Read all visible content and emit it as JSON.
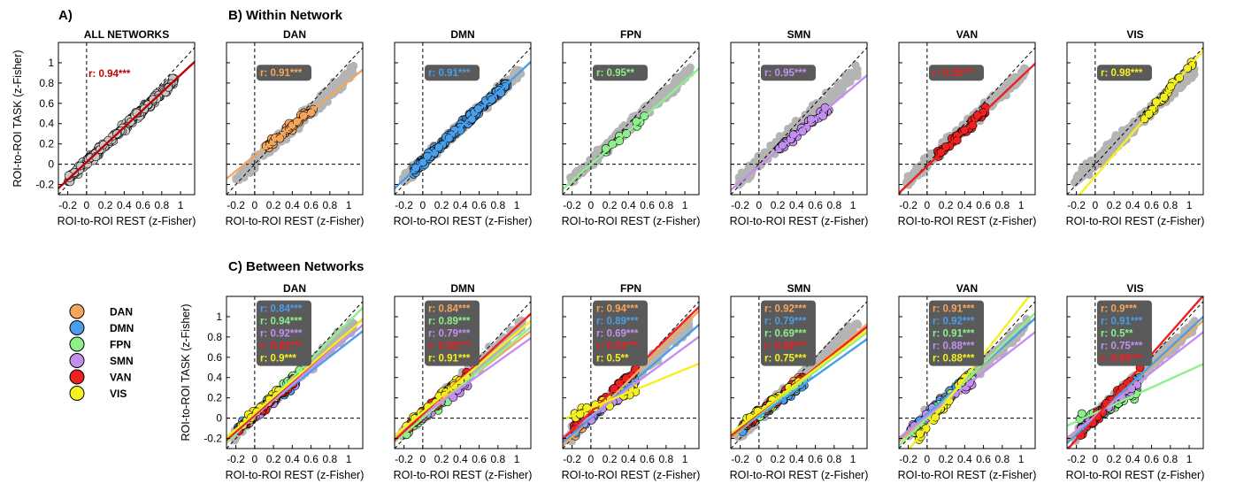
{
  "panel_labels": {
    "a": "A)",
    "b": "B) Within Network",
    "c": "C) Between Networks"
  },
  "axis_labels": {
    "x": "ROI-to-ROI REST (z-Fisher)",
    "y": "ROI-to-ROI TASK (z-Fisher)"
  },
  "colors": {
    "DAN": "#f5a65b",
    "DMN": "#4a9eea",
    "FPN": "#8ef08a",
    "SMN": "#c490f0",
    "VAN": "#ee2020",
    "VIS": "#f5f020",
    "ALL_fill": "#c8c8c8",
    "ALL_line": "#c00000",
    "background_points": "#b4b4b4",
    "r_box": "#5a5a5a"
  },
  "legend": [
    "DAN",
    "DMN",
    "FPN",
    "SMN",
    "VAN",
    "VIS"
  ],
  "chart_data": [
    {
      "type": "scatter",
      "panel": "A",
      "title": "ALL NETWORKS",
      "xlabel": "ROI-to-ROI REST (z-Fisher)",
      "ylabel": "ROI-to-ROI TASK (z-Fisher)",
      "xlim": [
        -0.3,
        1.15
      ],
      "ylim": [
        -0.3,
        1.2
      ],
      "xticks": [
        "-0.2",
        "0",
        "0.2",
        "0.4",
        "0.6",
        "0.8",
        "1"
      ],
      "yticks": [
        "-0.2",
        "0",
        "0.2",
        "0.4",
        "0.6",
        "0.8",
        "1"
      ],
      "series": [
        {
          "label": "ALL",
          "color": "#c8c8c8",
          "r": "r: 0.94***",
          "x_range": [
            -0.2,
            0.95
          ],
          "fit": [
            0.86,
            0.02
          ]
        }
      ]
    },
    {
      "type": "scatter",
      "panel": "B",
      "title": "DAN",
      "xlim": [
        -0.3,
        1.15
      ],
      "ylim": [
        -0.3,
        1.2
      ],
      "xticks": [
        "-0.2",
        "0",
        "0.2",
        "0.4",
        "0.6",
        "0.8",
        "1"
      ],
      "series": [
        {
          "label": "DAN",
          "r": "r: 0.91***",
          "x_range": [
            0.12,
            0.65
          ],
          "fit": [
            0.74,
            0.08
          ]
        }
      ]
    },
    {
      "type": "scatter",
      "panel": "B",
      "title": "DMN",
      "xlim": [
        -0.3,
        1.15
      ],
      "ylim": [
        -0.3,
        1.2
      ],
      "xticks": [
        "-0.2",
        "0",
        "0.2",
        "0.4",
        "0.6",
        "0.8",
        "1"
      ],
      "series": [
        {
          "label": "DMN",
          "r": "r: 0.91***",
          "x_range": [
            -0.1,
            0.9
          ],
          "fit": [
            0.86,
            0.02
          ]
        }
      ]
    },
    {
      "type": "scatter",
      "panel": "B",
      "title": "FPN",
      "xlim": [
        -0.3,
        1.15
      ],
      "ylim": [
        -0.3,
        1.2
      ],
      "xticks": [
        "-0.2",
        "0",
        "0.2",
        "0.4",
        "0.6",
        "0.8",
        "1"
      ],
      "series": [
        {
          "label": "FPN",
          "r": "r: 0.95**",
          "x_range": [
            0.15,
            0.6
          ],
          "fit": [
            0.82,
            0.0
          ]
        }
      ]
    },
    {
      "type": "scatter",
      "panel": "B",
      "title": "SMN",
      "xlim": [
        -0.3,
        1.15
      ],
      "ylim": [
        -0.3,
        1.2
      ],
      "xticks": [
        "-0.2",
        "0",
        "0.2",
        "0.4",
        "0.6",
        "0.8",
        "1"
      ],
      "series": [
        {
          "label": "SMN",
          "r": "r: 0.95***",
          "x_range": [
            0.2,
            0.75
          ],
          "fit": [
            0.78,
            -0.02
          ]
        }
      ]
    },
    {
      "type": "scatter",
      "panel": "B",
      "title": "VAN",
      "xlim": [
        -0.3,
        1.15
      ],
      "ylim": [
        -0.3,
        1.2
      ],
      "xticks": [
        "-0.2",
        "0",
        "0.2",
        "0.4",
        "0.6",
        "0.8",
        "1"
      ],
      "series": [
        {
          "label": "VAN",
          "r": "r: 0.95***",
          "x_range": [
            0.1,
            0.62
          ],
          "fit": [
            0.88,
            -0.02
          ]
        }
      ]
    },
    {
      "type": "scatter",
      "panel": "B",
      "title": "VIS",
      "xlim": [
        -0.3,
        1.15
      ],
      "ylim": [
        -0.3,
        1.2
      ],
      "xticks": [
        "-0.2",
        "0",
        "0.2",
        "0.4",
        "0.6",
        "0.8",
        "1"
      ],
      "series": [
        {
          "label": "VIS",
          "r": "r: 0.98***",
          "x_range": [
            0.5,
            1.1
          ],
          "fit": [
            1.08,
            -0.12
          ]
        }
      ]
    },
    {
      "type": "scatter",
      "panel": "C",
      "title": "DAN",
      "xlim": [
        -0.3,
        1.15
      ],
      "ylim": [
        -0.3,
        1.2
      ],
      "xticks": [
        "-0.2",
        "0",
        "0.2",
        "0.4",
        "0.6",
        "0.8",
        "1"
      ],
      "yticks": [
        "-0.2",
        "0",
        "0.2",
        "0.4",
        "0.6",
        "0.8",
        "1"
      ],
      "series": [
        {
          "label": "DMN",
          "r": "r: 0.84***",
          "fit": [
            0.72,
            0.03
          ]
        },
        {
          "label": "FPN",
          "r": "r: 0.94***",
          "fit": [
            0.92,
            0.03
          ]
        },
        {
          "label": "SMN",
          "r": "r: 0.92***",
          "fit": [
            0.78,
            0.02
          ]
        },
        {
          "label": "VAN",
          "r": "r: 0.91***",
          "fit": [
            0.82,
            0.03
          ]
        },
        {
          "label": "VIS",
          "r": "r: 0.9***",
          "fit": [
            0.8,
            0.05
          ]
        }
      ]
    },
    {
      "type": "scatter",
      "panel": "C",
      "title": "DMN",
      "xlim": [
        -0.3,
        1.15
      ],
      "ylim": [
        -0.3,
        1.2
      ],
      "xticks": [
        "-0.2",
        "0",
        "0.2",
        "0.4",
        "0.6",
        "0.8",
        "1"
      ],
      "series": [
        {
          "label": "DAN",
          "r": "r: 0.84***",
          "fit": [
            0.72,
            0.03
          ]
        },
        {
          "label": "FPN",
          "r": "r: 0.89***",
          "fit": [
            0.78,
            0.0
          ]
        },
        {
          "label": "SMN",
          "r": "r: 0.79***",
          "fit": [
            0.66,
            0.03
          ]
        },
        {
          "label": "VAN",
          "r": "r: 0.92***",
          "fit": [
            0.86,
            0.04
          ]
        },
        {
          "label": "VIS",
          "r": "r: 0.91***",
          "fit": [
            0.78,
            0.06
          ]
        }
      ]
    },
    {
      "type": "scatter",
      "panel": "C",
      "title": "FPN",
      "xlim": [
        -0.3,
        1.15
      ],
      "ylim": [
        -0.3,
        1.2
      ],
      "xticks": [
        "-0.2",
        "0",
        "0.2",
        "0.4",
        "0.6",
        "0.8",
        "1"
      ],
      "series": [
        {
          "label": "DAN",
          "r": "r: 0.94***",
          "fit": [
            0.92,
            0.0
          ]
        },
        {
          "label": "DMN",
          "r": "r: 0.89***",
          "fit": [
            0.8,
            0.0
          ]
        },
        {
          "label": "SMN",
          "r": "r: 0.69***",
          "fit": [
            0.68,
            0.02
          ]
        },
        {
          "label": "VAN",
          "r": "r: 0.91***",
          "fit": [
            0.9,
            0.06
          ]
        },
        {
          "label": "VIS",
          "r": "r: 0.5**",
          "fit": [
            0.38,
            0.1
          ]
        }
      ]
    },
    {
      "type": "scatter",
      "panel": "C",
      "title": "SMN",
      "xlim": [
        -0.3,
        1.15
      ],
      "ylim": [
        -0.3,
        1.2
      ],
      "xticks": [
        "-0.2",
        "0",
        "0.2",
        "0.4",
        "0.6",
        "0.8",
        "1"
      ],
      "series": [
        {
          "label": "DAN",
          "r": "r: 0.92***",
          "fit": [
            0.78,
            0.03
          ]
        },
        {
          "label": "DMN",
          "r": "r: 0.79***",
          "fit": [
            0.66,
            0.02
          ]
        },
        {
          "label": "FPN",
          "r": "r: 0.69***",
          "fit": [
            0.7,
            0.04
          ]
        },
        {
          "label": "VAN",
          "r": "r: 0.88***",
          "fit": [
            0.74,
            0.05
          ]
        },
        {
          "label": "VIS",
          "r": "r: 0.75***",
          "fit": [
            0.7,
            0.06
          ]
        }
      ]
    },
    {
      "type": "scatter",
      "panel": "C",
      "title": "VAN",
      "xlim": [
        -0.3,
        1.15
      ],
      "ylim": [
        -0.3,
        1.2
      ],
      "xticks": [
        "-0.2",
        "0",
        "0.2",
        "0.4",
        "0.6",
        "0.8",
        "1"
      ],
      "series": [
        {
          "label": "DAN",
          "r": "r: 0.91***",
          "fit": [
            0.84,
            0.02
          ]
        },
        {
          "label": "DMN",
          "r": "r: 0.92***",
          "fit": [
            0.82,
            0.04
          ]
        },
        {
          "label": "FPN",
          "r": "r: 0.91***",
          "fit": [
            0.9,
            0.0
          ]
        },
        {
          "label": "SMN",
          "r": "r: 0.88***",
          "fit": [
            0.72,
            0.02
          ]
        },
        {
          "label": "VIS",
          "r": "r: 0.88***",
          "fit": [
            1.18,
            -0.08
          ]
        }
      ]
    },
    {
      "type": "scatter",
      "panel": "C",
      "title": "VIS",
      "xlim": [
        -0.3,
        1.15
      ],
      "ylim": [
        -0.3,
        1.2
      ],
      "xticks": [
        "-0.2",
        "0",
        "0.2",
        "0.4",
        "0.6",
        "0.8",
        "1"
      ],
      "series": [
        {
          "label": "DAN",
          "r": "r: 0.9***",
          "fit": [
            0.82,
            0.02
          ]
        },
        {
          "label": "DMN",
          "r": "r: 0.91***",
          "fit": [
            0.86,
            0.01
          ]
        },
        {
          "label": "FPN",
          "r": "r: 0.5**",
          "fit": [
            0.42,
            0.05
          ]
        },
        {
          "label": "SMN",
          "r": "r: 0.75***",
          "fit": [
            0.72,
            0.02
          ]
        },
        {
          "label": "VAN",
          "r": "r: 0.88***",
          "fit": [
            1.05,
            0.0
          ]
        }
      ]
    }
  ]
}
